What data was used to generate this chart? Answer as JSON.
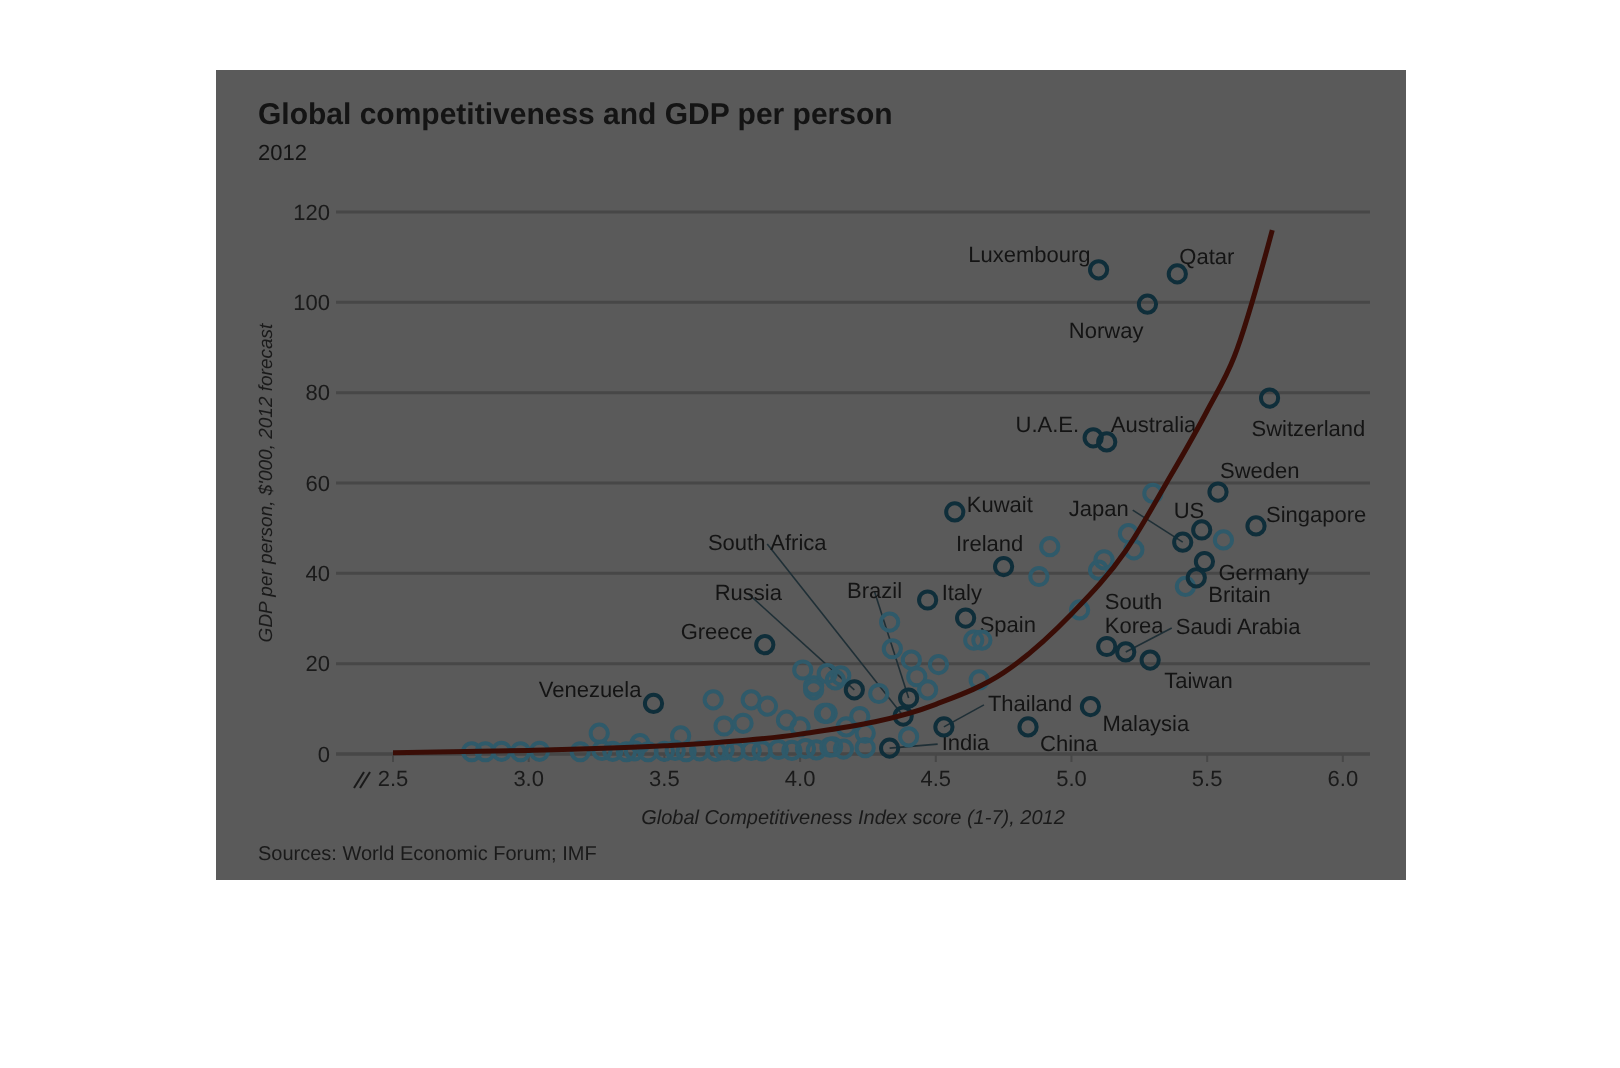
{
  "chart_data": {
    "type": "scatter",
    "title": "Global competitiveness and GDP per person",
    "subtitle": "2012",
    "xlabel": "Global Competitiveness Index score (1-7), 2012",
    "ylabel": "GDP per person, $'000, 2012 forecast",
    "xlim": [
      2.29,
      6.1
    ],
    "ylim": [
      0,
      120
    ],
    "xticks": [
      2.5,
      {
        "value": 3,
        "label": "3.0"
      },
      3.5,
      {
        "value": 4,
        "label": "4.0"
      },
      4.5,
      {
        "value": 5,
        "label": "5.0"
      },
      5.5,
      {
        "value": 6,
        "label": "6.0"
      }
    ],
    "yticks": [
      0,
      20,
      40,
      60,
      80,
      100,
      120
    ],
    "grid": "y",
    "series": [
      {
        "marker": "circle",
        "color": "#2f5a6a",
        "x": [
          2.79,
          2.84,
          2.9,
          2.97,
          3.04,
          3.19,
          3.27,
          3.31,
          3.36,
          3.39,
          3.44,
          3.5,
          3.54,
          3.58,
          3.63,
          3.69,
          3.72,
          3.76,
          3.82,
          3.86,
          3.92,
          3.97,
          4.02,
          4.06,
          4.11,
          4.16,
          3.26,
          3.68,
          3.82,
          3.88,
          4.01,
          4.05,
          4.15,
          3.72,
          3.79,
          3.95,
          4.1,
          3.56,
          3.41,
          4.33,
          4.34,
          4.41,
          4.51,
          4.43,
          4.47,
          4.64,
          4.67,
          4.66,
          4.92,
          4.88,
          5.03,
          5.1,
          5.12,
          5.21,
          5.23,
          5.3,
          5.42,
          5.56,
          4.1,
          4.05,
          4.13,
          4.29,
          4.22,
          4.17,
          4.24,
          4.4,
          4.09,
          4.0,
          4.12,
          4.24
        ],
        "values": [
          0.5,
          0.5,
          0.6,
          0.5,
          0.6,
          0.5,
          0.8,
          0.6,
          0.5,
          0.7,
          0.5,
          0.6,
          0.8,
          0.5,
          0.7,
          0.6,
          0.9,
          0.6,
          0.8,
          0.7,
          1.0,
          0.8,
          1.2,
          0.9,
          1.5,
          1.1,
          4.6,
          12.0,
          12.0,
          10.6,
          18.6,
          15.1,
          17.3,
          6.2,
          6.8,
          7.5,
          9.0,
          4.0,
          2.3,
          29.2,
          23.3,
          20.8,
          19.8,
          17.1,
          14.2,
          25.2,
          25.2,
          16.4,
          45.9,
          39.3,
          31.9,
          40.7,
          43.0,
          48.8,
          45.2,
          57.7,
          37.1,
          47.4,
          17.8,
          14.2,
          16.4,
          13.4,
          8.3,
          6.0,
          4.6,
          3.8,
          9.0,
          6.0,
          1.6,
          1.4
        ]
      },
      {
        "marker": "circle",
        "color": "#0f2e3a",
        "x": [
          5.1,
          5.39,
          5.28,
          5.73,
          5.08,
          5.13,
          5.54,
          4.57,
          5.68,
          5.41,
          5.48,
          5.49,
          5.46,
          4.75,
          4.47,
          4.61,
          5.13,
          5.2,
          5.29,
          3.87,
          4.2,
          4.38,
          4.4,
          4.53,
          4.33,
          4.84,
          5.07,
          3.46
        ],
        "values": [
          107.2,
          106.3,
          99.6,
          78.8,
          70.0,
          69.1,
          58.0,
          53.6,
          50.5,
          46.9,
          49.6,
          42.6,
          39.0,
          41.5,
          34.1,
          30.1,
          23.8,
          22.6,
          20.8,
          24.2,
          14.2,
          8.4,
          12.4,
          6.0,
          1.3,
          6.0,
          10.5,
          11.2
        ]
      },
      {
        "type": "line",
        "marker": "none",
        "color": "#3a0d06",
        "x": [
          2.5,
          3.0,
          3.5,
          4.0,
          4.5,
          4.75,
          5.0,
          5.2,
          5.35,
          5.5,
          5.6,
          5.74
        ],
        "values": [
          0.3,
          0.8,
          1.8,
          4.4,
          11,
          18,
          31,
          45,
          60,
          76,
          88,
          116
        ]
      }
    ],
    "annotations": [
      {
        "text": "Luxembourg",
        "x": 5.1,
        "y": 107.2
      },
      {
        "text": "Qatar",
        "x": 5.39,
        "y": 106.3
      },
      {
        "text": "Norway",
        "x": 5.28,
        "y": 99.6
      },
      {
        "text": "Switzerland",
        "x": 5.73,
        "y": 78.8
      },
      {
        "text": "U.A.E.",
        "x": 5.08,
        "y": 70.0
      },
      {
        "text": "Australia",
        "x": 5.13,
        "y": 69.1
      },
      {
        "text": "Sweden",
        "x": 5.54,
        "y": 58.0
      },
      {
        "text": "Kuwait",
        "x": 4.57,
        "y": 53.6
      },
      {
        "text": "Singapore",
        "x": 5.68,
        "y": 50.5
      },
      {
        "text": "Japan",
        "x": 5.41,
        "y": 46.9
      },
      {
        "text": "US",
        "x": 5.48,
        "y": 49.6
      },
      {
        "text": "Germany",
        "x": 5.49,
        "y": 42.6
      },
      {
        "text": "Britain",
        "x": 5.46,
        "y": 39.0
      },
      {
        "text": "Ireland",
        "x": 4.75,
        "y": 41.5
      },
      {
        "text": "Italy",
        "x": 4.47,
        "y": 34.1
      },
      {
        "text": "Spain",
        "x": 4.61,
        "y": 30.1
      },
      {
        "text": "South Korea",
        "x": 5.13,
        "y": 23.8
      },
      {
        "text": "Saudi Arabia",
        "x": 5.2,
        "y": 22.6
      },
      {
        "text": "Taiwan",
        "x": 5.29,
        "y": 20.8
      },
      {
        "text": "Greece",
        "x": 3.87,
        "y": 24.2
      },
      {
        "text": "Russia",
        "x": 4.2,
        "y": 14.2
      },
      {
        "text": "South Africa",
        "x": 4.38,
        "y": 8.4
      },
      {
        "text": "Brazil",
        "x": 4.4,
        "y": 12.4
      },
      {
        "text": "Thailand",
        "x": 4.53,
        "y": 6.0
      },
      {
        "text": "India",
        "x": 4.33,
        "y": 1.3
      },
      {
        "text": "China",
        "x": 4.84,
        "y": 6.0
      },
      {
        "text": "Malaysia",
        "x": 5.07,
        "y": 10.5
      },
      {
        "text": "Venezuela",
        "x": 3.46,
        "y": 11.2
      },
      "Sources: World Economic Forum; IMF"
    ]
  }
}
